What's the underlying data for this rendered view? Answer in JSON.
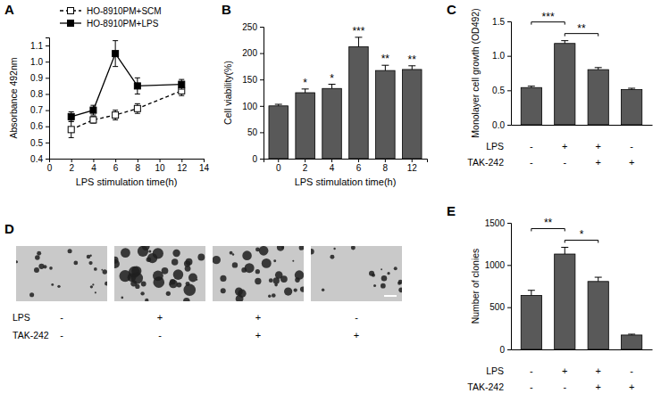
{
  "chart_data": [
    {
      "type": "line",
      "title": "A",
      "x_label": "LPS stimulation time(h)",
      "y_label": "Absorbance 492nm",
      "x": [
        2,
        4,
        6,
        8,
        12
      ],
      "xlim": [
        0,
        14
      ],
      "xticks": [
        0,
        2,
        4,
        6,
        8,
        10,
        12,
        14
      ],
      "ylim": [
        0.4,
        1.15
      ],
      "yticks": [
        0.4,
        0.5,
        0.6,
        0.7,
        0.8,
        0.9,
        {
          "value": 1,
          "label": "1.0"
        },
        1.1
      ],
      "legend": "top-left",
      "series": [
        {
          "name": "HO-8910PM+SCM",
          "color": "#000000",
          "marker": "open-square",
          "line_style": "dashed",
          "values": [
            0.58,
            0.64,
            0.67,
            0.71,
            0.82
          ],
          "errors": [
            0.05,
            0.02,
            0.03,
            0.03,
            0.03
          ]
        },
        {
          "name": "HO-8910PM+LPS",
          "color": "#000000",
          "marker": "square",
          "line_style": "solid",
          "values": [
            0.66,
            0.7,
            1.05,
            0.85,
            0.86
          ],
          "errors": [
            0.03,
            0.03,
            0.08,
            0.05,
            0.03
          ]
        }
      ]
    },
    {
      "type": "bar",
      "title": "B",
      "x_label": "LPS stimulation time(h)",
      "y_label": "Cell viability(%)",
      "categories": [
        "0",
        "2",
        "4",
        "6",
        "8",
        "12"
      ],
      "values": [
        100,
        125,
        133,
        212,
        167,
        169
      ],
      "errors": [
        3,
        7,
        8,
        18,
        10,
        7
      ],
      "color": "#595959",
      "ylim": [
        0,
        250
      ],
      "yticks": [
        0,
        50,
        100,
        150,
        200,
        250
      ],
      "annotations": [
        {
          "category": "2",
          "text": "*"
        },
        {
          "category": "4",
          "text": "*"
        },
        {
          "category": "6",
          "text": "***"
        },
        {
          "category": "8",
          "text": "**"
        },
        {
          "category": "12",
          "text": "**"
        }
      ]
    },
    {
      "type": "bar",
      "title": "C",
      "y_label": "Monolayer cell growth (OD492)",
      "categories": [
        null,
        null,
        null,
        null
      ],
      "values": [
        0.54,
        1.18,
        0.8,
        0.51
      ],
      "errors": [
        0.02,
        0.04,
        0.03,
        0.02
      ],
      "color": "#595959",
      "ylim": [
        0,
        1.5
      ],
      "yticks": [
        {
          "value": 0,
          "label": "0.0"
        },
        0.5,
        {
          "value": 1,
          "label": "1.0"
        },
        1.5
      ],
      "comparisons": [
        {
          "from": 0,
          "to": 1,
          "text": "***"
        },
        {
          "from": 1,
          "to": 2,
          "text": "**"
        }
      ],
      "conditions": [
        {
          "label": "LPS",
          "signs": [
            "-",
            "+",
            "+",
            "-"
          ]
        },
        {
          "label": "TAK-242",
          "signs": [
            "-",
            "-",
            "+",
            "+"
          ]
        }
      ]
    },
    {
      "type": "bar",
      "title": "E",
      "y_label": "Number of clonies",
      "categories": [
        null,
        null,
        null,
        null
      ],
      "values": [
        640,
        1130,
        805,
        170
      ],
      "errors": [
        60,
        80,
        50,
        10
      ],
      "color": "#595959",
      "ylim": [
        0,
        1500
      ],
      "yticks": [
        0,
        500,
        1000,
        1500
      ],
      "comparisons": [
        {
          "from": 0,
          "to": 1,
          "text": "**"
        },
        {
          "from": 1,
          "to": 2,
          "text": "*"
        }
      ],
      "conditions": [
        {
          "label": "LPS",
          "signs": [
            "-",
            "+",
            "+",
            "-"
          ]
        },
        {
          "label": "TAK-242",
          "signs": [
            "-",
            "-",
            "+",
            "+"
          ]
        }
      ]
    }
  ],
  "panel_d": {
    "title": "D",
    "conditions": [
      {
        "label": "LPS",
        "signs": [
          "-",
          "+",
          "+",
          "-"
        ]
      },
      {
        "label": "TAK-242",
        "signs": [
          "-",
          "-",
          "+",
          "+"
        ]
      }
    ]
  }
}
